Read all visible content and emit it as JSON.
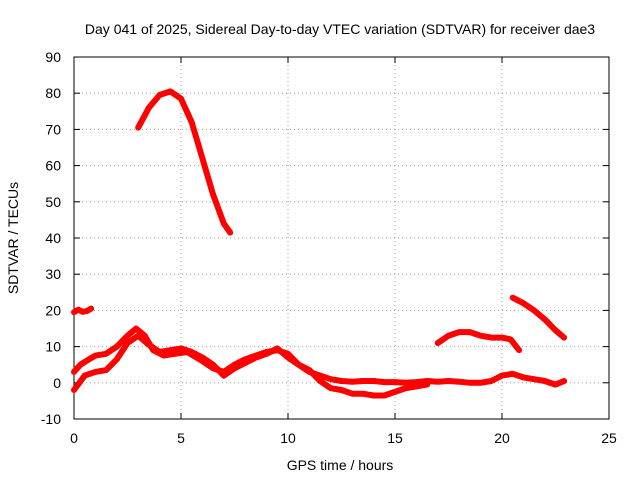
{
  "chart_data": {
    "type": "line",
    "title": "Day 041 of 2025, Sidereal Day-to-day VTEC variation (SDTVAR) for receiver dae3",
    "xlabel": "GPS time / hours",
    "ylabel": "SDTVAR / TECUs",
    "xlim": [
      0,
      25
    ],
    "ylim": [
      -10,
      90
    ],
    "x_ticks": [
      0,
      5,
      10,
      15,
      20,
      25
    ],
    "x_tick_labels": [
      "0",
      "5",
      "10",
      "15",
      "20",
      "25"
    ],
    "y_ticks": [
      -10,
      0,
      10,
      20,
      30,
      40,
      50,
      60,
      70,
      80,
      90
    ],
    "y_tick_labels": [
      "-10",
      "0",
      "10",
      "20",
      "30",
      "40",
      "50",
      "60",
      "70",
      "80",
      "90"
    ],
    "grid": true,
    "legend": "none",
    "color": "#ff0000",
    "series": [
      {
        "name": "segment-1",
        "points": [
          [
            0.0,
            19.5
          ],
          [
            0.2,
            20.2
          ],
          [
            0.4,
            19.6
          ],
          [
            0.6,
            19.8
          ],
          [
            0.8,
            20.5
          ]
        ]
      },
      {
        "name": "segment-2",
        "points": [
          [
            3.0,
            70.5
          ],
          [
            3.5,
            76.0
          ],
          [
            4.0,
            79.5
          ],
          [
            4.5,
            80.5
          ],
          [
            5.0,
            78.5
          ],
          [
            5.5,
            72.0
          ],
          [
            6.0,
            62.0
          ],
          [
            6.5,
            52.0
          ],
          [
            7.0,
            44.0
          ],
          [
            7.3,
            41.5
          ]
        ]
      },
      {
        "name": "segment-3",
        "points": [
          [
            0.0,
            -2.0
          ],
          [
            0.5,
            2.0
          ],
          [
            1.0,
            3.0
          ],
          [
            1.5,
            3.5
          ],
          [
            2.0,
            6.5
          ],
          [
            2.5,
            11.0
          ],
          [
            3.0,
            13.0
          ],
          [
            3.5,
            10.5
          ],
          [
            4.0,
            8.5
          ],
          [
            4.5,
            9.0
          ],
          [
            5.0,
            9.5
          ],
          [
            5.5,
            8.5
          ],
          [
            6.0,
            7.0
          ],
          [
            6.5,
            5.0
          ],
          [
            7.0,
            2.0
          ],
          [
            7.5,
            4.0
          ],
          [
            8.0,
            5.5
          ],
          [
            8.5,
            7.0
          ],
          [
            9.0,
            8.0
          ],
          [
            9.5,
            9.5
          ],
          [
            10.0,
            7.0
          ],
          [
            10.5,
            5.0
          ],
          [
            11.0,
            3.0
          ],
          [
            11.5,
            2.0
          ],
          [
            12.0,
            1.0
          ],
          [
            12.5,
            0.5
          ],
          [
            13.0,
            0.3
          ],
          [
            13.5,
            0.5
          ],
          [
            14.0,
            0.5
          ],
          [
            14.5,
            0.2
          ],
          [
            15.0,
            0.2
          ],
          [
            15.5,
            0.0
          ],
          [
            16.0,
            0.2
          ],
          [
            16.5,
            0.5
          ],
          [
            17.0,
            0.3
          ],
          [
            17.5,
            0.5
          ],
          [
            18.0,
            0.3
          ],
          [
            18.5,
            0.0
          ],
          [
            19.0,
            0.0
          ],
          [
            19.5,
            0.5
          ],
          [
            20.0,
            2.0
          ],
          [
            20.5,
            2.5
          ],
          [
            21.0,
            1.5
          ],
          [
            21.5,
            1.0
          ],
          [
            22.0,
            0.5
          ],
          [
            22.5,
            -0.5
          ],
          [
            22.9,
            0.5
          ]
        ]
      },
      {
        "name": "segment-4",
        "points": [
          [
            0.0,
            3.0
          ],
          [
            0.3,
            5.0
          ],
          [
            0.7,
            6.5
          ],
          [
            1.0,
            7.5
          ],
          [
            1.5,
            8.0
          ],
          [
            2.0,
            10.0
          ],
          [
            2.5,
            13.0
          ],
          [
            2.9,
            15.0
          ],
          [
            3.3,
            13.0
          ],
          [
            3.7,
            9.0
          ],
          [
            4.2,
            7.5
          ],
          [
            4.7,
            8.0
          ],
          [
            5.3,
            8.5
          ],
          [
            6.0,
            6.0
          ],
          [
            6.5,
            4.0
          ],
          [
            7.0,
            3.0
          ],
          [
            7.5,
            5.0
          ],
          [
            8.0,
            6.5
          ],
          [
            8.5,
            7.5
          ],
          [
            9.0,
            8.5
          ],
          [
            9.5,
            9.0
          ],
          [
            10.0,
            8.0
          ],
          [
            10.5,
            5.0
          ],
          [
            11.0,
            3.5
          ],
          [
            11.5,
            0.5
          ],
          [
            12.0,
            -1.5
          ],
          [
            12.5,
            -2.0
          ],
          [
            13.0,
            -3.0
          ],
          [
            13.5,
            -3.0
          ],
          [
            14.0,
            -3.5
          ],
          [
            14.5,
            -3.5
          ],
          [
            15.0,
            -2.5
          ],
          [
            15.5,
            -1.5
          ],
          [
            16.0,
            -1.0
          ],
          [
            16.5,
            -0.5
          ]
        ]
      },
      {
        "name": "segment-5",
        "points": [
          [
            17.0,
            11.0
          ],
          [
            17.5,
            13.0
          ],
          [
            18.0,
            14.0
          ],
          [
            18.5,
            14.0
          ],
          [
            19.0,
            13.0
          ],
          [
            19.5,
            12.5
          ],
          [
            20.0,
            12.5
          ],
          [
            20.4,
            12.0
          ],
          [
            20.8,
            9.0
          ]
        ]
      },
      {
        "name": "segment-6",
        "points": [
          [
            20.5,
            23.5
          ],
          [
            21.0,
            22.0
          ],
          [
            21.5,
            20.0
          ],
          [
            22.0,
            17.5
          ],
          [
            22.5,
            14.5
          ],
          [
            22.9,
            12.5
          ]
        ]
      }
    ]
  }
}
